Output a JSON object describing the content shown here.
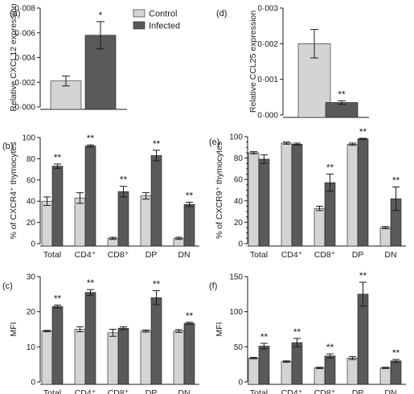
{
  "legend": [
    {
      "name": "Control",
      "color": "#d4d4d4"
    },
    {
      "name": "Infected",
      "color": "#5a5a5a"
    }
  ],
  "chart_data": [
    {
      "panel_label": "(a)",
      "type": "bar",
      "ylabel": "Relative CXCL12 expression",
      "ylim": [
        0,
        0.008
      ],
      "yticks": [
        "0·000",
        "0·002",
        "0·004",
        "0·006",
        "0·008"
      ],
      "categories": [
        ""
      ],
      "series": [
        {
          "name": "Control",
          "values": [
            0.0021
          ],
          "errors": [
            0.0004
          ]
        },
        {
          "name": "Infected",
          "values": [
            0.0058
          ],
          "errors": [
            0.0011
          ]
        }
      ],
      "annotations": [
        [
          "",
          "*"
        ]
      ]
    },
    {
      "panel_label": "(d)",
      "type": "bar",
      "ylabel": "Relative CCL25 expression",
      "ylim": [
        0,
        0.003
      ],
      "yticks": [
        "0·000",
        "0·001",
        "0·002",
        "0·003"
      ],
      "categories": [
        ""
      ],
      "series": [
        {
          "name": "Control",
          "values": [
            0.002
          ],
          "errors": [
            0.0004
          ]
        },
        {
          "name": "Infected",
          "values": [
            0.00035
          ],
          "errors": [
            5e-05
          ]
        }
      ],
      "annotations": [
        [
          "",
          "**"
        ]
      ]
    },
    {
      "panel_label": "(b)",
      "type": "bar",
      "ylabel": "% of CXCR4⁺ thymocytes",
      "ylim": [
        0,
        100
      ],
      "yticks": [
        "0",
        "20",
        "40",
        "60",
        "80",
        "100"
      ],
      "categories": [
        "Total",
        "CD4⁺",
        "CD8⁺",
        "DP",
        "DN"
      ],
      "series": [
        {
          "name": "Control",
          "values": [
            40,
            43,
            5,
            45,
            5
          ],
          "errors": [
            4,
            5,
            1,
            3,
            1
          ]
        },
        {
          "name": "Infected",
          "values": [
            73,
            92,
            49,
            83,
            37
          ],
          "errors": [
            2,
            1,
            5,
            5,
            2
          ]
        }
      ],
      "annotations": [
        [
          "",
          "**"
        ],
        [
          "",
          "**"
        ],
        [
          "",
          "**"
        ],
        [
          "",
          "**"
        ],
        [
          "",
          "**"
        ]
      ]
    },
    {
      "panel_label": "(e)",
      "type": "bar",
      "ylabel": "% of CXCR9⁺ thymocytes",
      "ylim": [
        0,
        100
      ],
      "yticks": [
        "0",
        "5",
        "10",
        "15",
        "20",
        "25",
        "30",
        "35",
        "40",
        "45",
        "50",
        "55",
        "60",
        "65",
        "70",
        "75",
        "80",
        "85",
        "90",
        "95",
        "100"
      ],
      "categories": [
        "Total",
        "CD4⁺",
        "CD8⁺",
        "DP",
        "DN"
      ],
      "series": [
        {
          "name": "Control",
          "values": [
            85,
            94,
            33,
            93,
            15
          ],
          "errors": [
            1,
            1,
            2,
            1,
            1
          ]
        },
        {
          "name": "Infected",
          "values": [
            79,
            93,
            57,
            98,
            42
          ],
          "errors": [
            4,
            1,
            8,
            0.5,
            11
          ]
        }
      ],
      "annotations": [
        [
          "",
          ""
        ],
        [
          "",
          ""
        ],
        [
          "",
          "**"
        ],
        [
          "",
          "**"
        ],
        [
          "",
          "**"
        ]
      ]
    },
    {
      "panel_label": "(c)",
      "type": "bar",
      "ylabel": "MFI",
      "ylim": [
        0,
        30
      ],
      "yticks": [
        "0",
        "10",
        "20",
        "30"
      ],
      "categories": [
        "Total",
        "CD4⁺",
        "CD8⁺",
        "DP",
        "DN"
      ],
      "series": [
        {
          "name": "Control",
          "values": [
            14.5,
            15,
            14,
            14.5,
            14.5
          ],
          "errors": [
            0.2,
            0.7,
            1,
            0.3,
            0.4
          ]
        },
        {
          "name": "Infected",
          "values": [
            21.5,
            25.5,
            15.3,
            24,
            16.7
          ],
          "errors": [
            0.4,
            0.8,
            0.4,
            2,
            0.3
          ]
        }
      ],
      "annotations": [
        [
          "",
          "**"
        ],
        [
          "",
          "**"
        ],
        [
          "",
          ""
        ],
        [
          "",
          "**"
        ],
        [
          "",
          "**"
        ]
      ]
    },
    {
      "panel_label": "(f)",
      "type": "bar",
      "ylabel": "MFI",
      "ylim": [
        0,
        150
      ],
      "yticks": [
        "0",
        "50",
        "100",
        "150"
      ],
      "categories": [
        "Total",
        "CD4⁺",
        "CD8⁺",
        "DP",
        "DN"
      ],
      "series": [
        {
          "name": "Control",
          "values": [
            34,
            29,
            20,
            34,
            20
          ],
          "errors": [
            1,
            1,
            1,
            2,
            1
          ]
        },
        {
          "name": "Infected",
          "values": [
            51,
            56,
            37,
            125,
            30
          ],
          "errors": [
            4,
            6,
            3,
            17,
            2
          ]
        }
      ],
      "annotations": [
        [
          "",
          "**"
        ],
        [
          "",
          "**"
        ],
        [
          "",
          "**"
        ],
        [
          "",
          "**"
        ],
        [
          "",
          "**"
        ]
      ]
    }
  ]
}
